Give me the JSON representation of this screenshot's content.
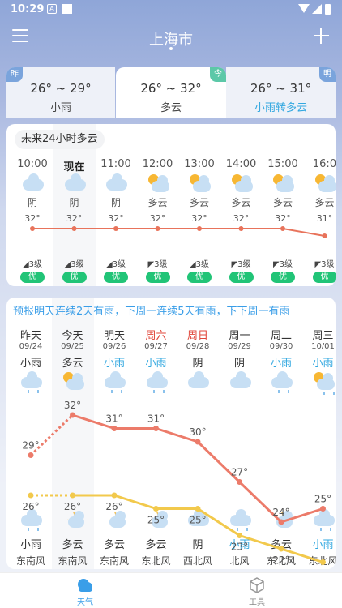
{
  "status_bar": {
    "time": "10:29"
  },
  "header": {
    "city": "上海市"
  },
  "day_tabs": [
    {
      "badge": "昨",
      "range": "26° ~ 29°",
      "condition": "小雨",
      "badge_color": "#7aa4dc"
    },
    {
      "badge": "今",
      "range": "26° ~ 32°",
      "condition": "多云",
      "badge_color": "#5cc8a8"
    },
    {
      "badge": "明",
      "range": "26° ~ 31°",
      "condition": "小雨转多云",
      "badge_color": "#7aa4dc",
      "condition_color": "#33a8e0"
    }
  ],
  "hourly": {
    "title": "未来24小时多云",
    "hours": [
      {
        "time": "10:00",
        "icon": "cloud-icon",
        "cond": "阴",
        "temp": "32°",
        "wind": "◢3级",
        "aqi": "优"
      },
      {
        "time": "现在",
        "icon": "cloud-icon",
        "cond": "阴",
        "temp": "32°",
        "wind": "◢3级",
        "aqi": "优"
      },
      {
        "time": "11:00",
        "icon": "cloud-icon",
        "cond": "阴",
        "temp": "32°",
        "wind": "◢3级",
        "aqi": "优"
      },
      {
        "time": "12:00",
        "icon": "partly-cloudy-icon",
        "cond": "多云",
        "temp": "32°",
        "wind": "◤3级",
        "aqi": "优"
      },
      {
        "time": "13:00",
        "icon": "partly-cloudy-icon",
        "cond": "多云",
        "temp": "32°",
        "wind": "◢3级",
        "aqi": "优"
      },
      {
        "time": "14:00",
        "icon": "partly-cloudy-icon",
        "cond": "多云",
        "temp": "32°",
        "wind": "◤3级",
        "aqi": "优"
      },
      {
        "time": "15:00",
        "icon": "partly-cloudy-icon",
        "cond": "多云",
        "temp": "32°",
        "wind": "◤3级",
        "aqi": "优"
      },
      {
        "time": "16:0",
        "icon": "partly-cloudy-icon",
        "cond": "多云",
        "temp": "31°",
        "wind": "◤3级",
        "aqi": "优"
      }
    ],
    "temps": [
      32,
      32,
      32,
      32,
      32,
      32,
      32,
      31
    ]
  },
  "daily": {
    "message": "预报明天连续2天有雨，下周一连续5天有雨，下下周一有雨",
    "days": [
      {
        "name": "昨天",
        "date": "09/24",
        "day_cond": "小雨",
        "day_icon": "rain-icon",
        "high": "29°",
        "low": "26°",
        "night_icon": "rain-icon",
        "night_cond": "小雨",
        "wind": "东南风"
      },
      {
        "name": "今天",
        "date": "09/25",
        "day_cond": "多云",
        "day_icon": "partly-cloudy-icon",
        "high": "32°",
        "low": "26°",
        "night_icon": "moon-cloud-icon",
        "night_cond": "多云",
        "wind": "东南风"
      },
      {
        "name": "明天",
        "date": "09/26",
        "day_cond": "小雨",
        "day_icon": "rain-icon",
        "high": "31°",
        "low": "26°",
        "night_icon": "moon-cloud-icon",
        "night_cond": "多云",
        "wind": "东南风"
      },
      {
        "name": "周六",
        "date": "09/27",
        "day_cond": "小雨",
        "day_icon": "rain-icon",
        "high": "31°",
        "low": "25°",
        "night_icon": "moon-cloud-icon",
        "night_cond": "多云",
        "wind": "东北风"
      },
      {
        "name": "周日",
        "date": "09/28",
        "day_cond": "阴",
        "day_icon": "cloud-icon",
        "high": "30°",
        "low": "25°",
        "night_icon": "cloud-icon",
        "night_cond": "阴",
        "wind": "西北风"
      },
      {
        "name": "周一",
        "date": "09/29",
        "day_cond": "阴",
        "day_icon": "cloud-icon",
        "high": "27°",
        "low": "23°",
        "night_icon": "rain-icon",
        "night_cond": "小雨",
        "wind": "北风"
      },
      {
        "name": "周二",
        "date": "09/30",
        "day_cond": "小雨",
        "day_icon": "rain-icon",
        "high": "24°",
        "low": "22°",
        "night_icon": "moon-cloud-icon",
        "night_cond": "多云",
        "wind": "东北风"
      },
      {
        "name": "周三",
        "date": "10/01",
        "day_cond": "小雨",
        "day_icon": "partly-cloudy-rain-icon",
        "high": "25°",
        "low": "21°",
        "night_icon": "rain-icon",
        "night_cond": "小雨",
        "wind": "东北风"
      }
    ],
    "highs": [
      29,
      32,
      31,
      31,
      30,
      27,
      24,
      25
    ],
    "lows": [
      26,
      26,
      26,
      25,
      25,
      23,
      22,
      21
    ]
  },
  "colors": {
    "accent": "#3a9ee8",
    "weekend": "#e0463a",
    "rain_text": "#33a8e0",
    "aqi_good": "#21c477",
    "hourly_line": "#e8735b",
    "high_line": "#ec7b6a",
    "low_line": "#f2c94c"
  },
  "nav": {
    "weather": "天气",
    "tools": "工具"
  }
}
